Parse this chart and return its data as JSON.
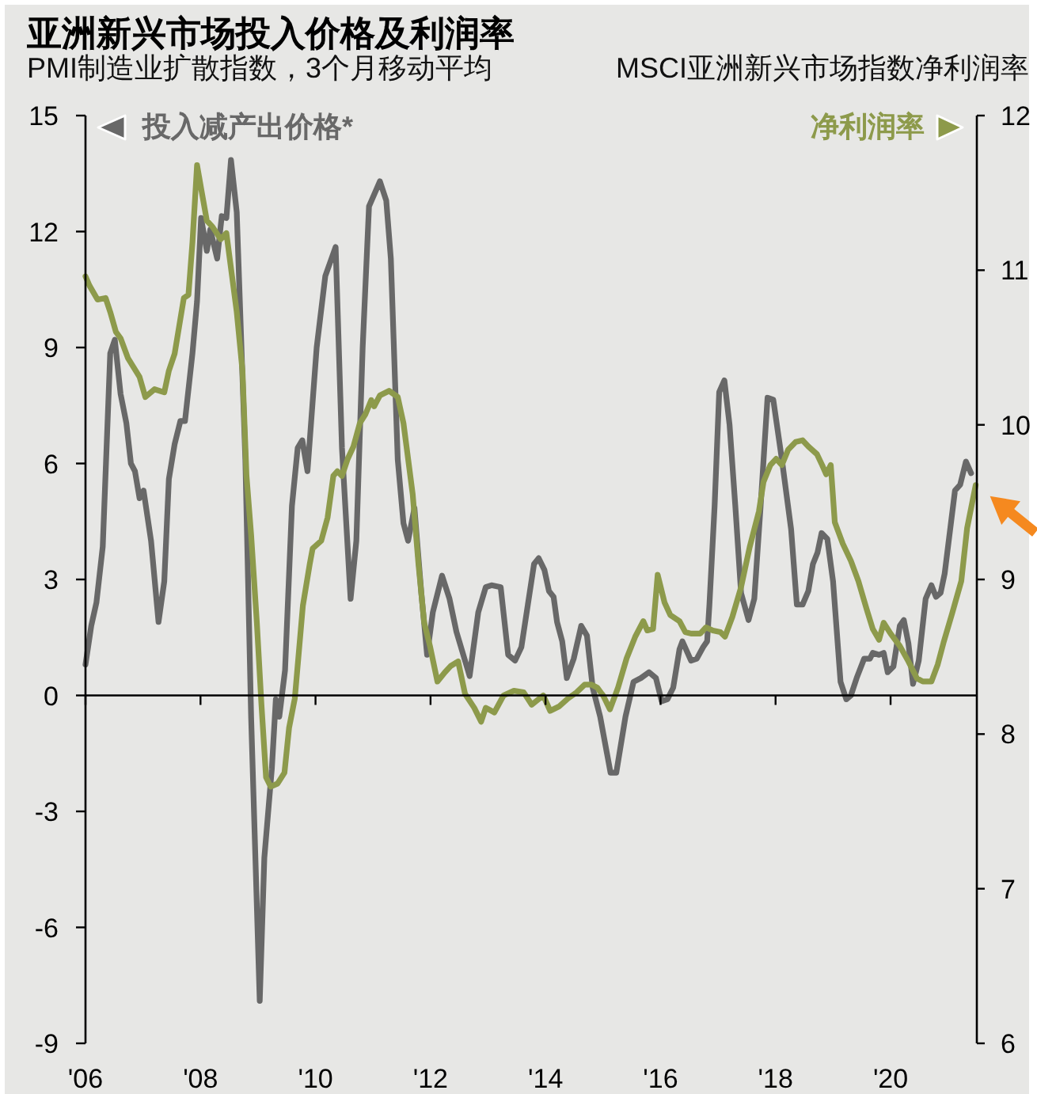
{
  "chart_data": {
    "type": "line",
    "title": "亚洲新兴市场投入价格及利润率",
    "ylabel": "PMI制造业扩散指数，3个月移动平均",
    "y2label": "MSCI亚洲新兴市场指数净利润率",
    "xlim": [
      2006,
      2021.5
    ],
    "xticks": [
      {
        "value": 2006,
        "label": "'06"
      },
      {
        "value": 2008,
        "label": "'08"
      },
      {
        "value": 2010,
        "label": "'10"
      },
      {
        "value": 2012,
        "label": "'12"
      },
      {
        "value": 2014,
        "label": "'14"
      },
      {
        "value": 2016,
        "label": "'16"
      },
      {
        "value": 2018,
        "label": "'18"
      },
      {
        "value": 2020,
        "label": "'20"
      }
    ],
    "ylim": [
      -9,
      15
    ],
    "yticks": [
      -9,
      -6,
      -3,
      0,
      3,
      6,
      9,
      12,
      15
    ],
    "y2lim": [
      6,
      12
    ],
    "y2ticks": [
      6,
      7,
      8,
      9,
      10,
      11,
      12
    ],
    "series": [
      {
        "name": "投入减产出价格*",
        "color": "#686868",
        "axis": "y",
        "x": [
          2006.0,
          2006.1,
          2006.19,
          2006.3,
          2006.43,
          2006.51,
          2006.61,
          2006.71,
          2006.79,
          2006.86,
          2006.94,
          2007.01,
          2007.14,
          2007.27,
          2007.37,
          2007.45,
          2007.55,
          2007.65,
          2007.73,
          2007.86,
          2007.94,
          2008.01,
          2008.11,
          2008.17,
          2008.29,
          2008.37,
          2008.45,
          2008.53,
          2008.63,
          2008.78,
          2008.88,
          2009.03,
          2009.11,
          2009.24,
          2009.31,
          2009.37,
          2009.47,
          2009.59,
          2009.69,
          2009.77,
          2009.86,
          2010.02,
          2010.17,
          2010.35,
          2010.46,
          2010.61,
          2010.71,
          2010.82,
          2010.93,
          2011.12,
          2011.23,
          2011.31,
          2011.43,
          2011.53,
          2011.61,
          2011.72,
          2011.84,
          2011.94,
          2012.04,
          2012.2,
          2012.33,
          2012.45,
          2012.68,
          2012.83,
          2012.96,
          2013.06,
          2013.22,
          2013.35,
          2013.47,
          2013.58,
          2013.8,
          2013.88,
          2013.98,
          2014.06,
          2014.14,
          2014.2,
          2014.29,
          2014.37,
          2014.49,
          2014.62,
          2014.72,
          2014.82,
          2014.95,
          2015.13,
          2015.23,
          2015.39,
          2015.53,
          2015.66,
          2015.8,
          2015.92,
          2016.02,
          2016.12,
          2016.22,
          2016.33,
          2016.38,
          2016.53,
          2016.63,
          2016.74,
          2016.81,
          2016.85,
          2016.94,
          2017.02,
          2017.11,
          2017.2,
          2017.3,
          2017.4,
          2017.53,
          2017.63,
          2017.74,
          2017.86,
          2017.96,
          2018.11,
          2018.27,
          2018.37,
          2018.47,
          2018.57,
          2018.65,
          2018.73,
          2018.8,
          2018.9,
          2019.0,
          2019.13,
          2019.23,
          2019.31,
          2019.41,
          2019.54,
          2019.64,
          2019.69,
          2019.8,
          2019.88,
          2019.95,
          2020.05,
          2020.16,
          2020.23,
          2020.31,
          2020.39,
          2020.49,
          2020.61,
          2020.71,
          2020.79,
          2020.87,
          2020.94,
          2021.12,
          2021.21,
          2021.31,
          2021.4
        ],
        "values": [
          0.8,
          1.8,
          2.4,
          3.85,
          8.85,
          9.2,
          7.8,
          7.05,
          6.0,
          5.8,
          5.1,
          5.3,
          4.0,
          1.9,
          2.95,
          5.6,
          6.5,
          7.1,
          7.1,
          8.85,
          10.2,
          12.35,
          11.5,
          12.05,
          11.3,
          12.4,
          12.35,
          13.85,
          12.5,
          6.1,
          -0.55,
          -7.9,
          -4.2,
          -1.9,
          -0.1,
          -0.55,
          0.65,
          4.9,
          6.4,
          6.6,
          5.8,
          9.0,
          10.85,
          11.6,
          6.4,
          2.5,
          4.0,
          9.0,
          12.65,
          13.3,
          12.8,
          11.3,
          6.1,
          4.45,
          4.0,
          4.85,
          2.65,
          1.05,
          2.15,
          3.1,
          2.5,
          1.65,
          0.5,
          2.15,
          2.8,
          2.85,
          2.8,
          1.05,
          0.9,
          1.25,
          3.4,
          3.55,
          3.25,
          2.7,
          2.55,
          1.9,
          1.4,
          0.45,
          0.95,
          1.8,
          1.55,
          0.2,
          -0.55,
          -2.0,
          -2.0,
          -0.55,
          0.35,
          0.45,
          0.6,
          0.45,
          -0.15,
          -0.1,
          0.2,
          1.2,
          1.4,
          0.9,
          0.95,
          1.25,
          1.4,
          2.35,
          4.9,
          7.85,
          8.15,
          7.0,
          4.9,
          2.65,
          1.95,
          2.5,
          4.9,
          7.7,
          7.65,
          6.1,
          4.3,
          2.35,
          2.35,
          2.7,
          3.4,
          3.7,
          4.2,
          4.05,
          2.95,
          0.35,
          -0.1,
          0.0,
          0.45,
          0.95,
          0.95,
          1.1,
          1.05,
          1.1,
          0.6,
          0.75,
          1.8,
          1.95,
          1.35,
          0.3,
          0.9,
          2.5,
          2.85,
          2.55,
          2.65,
          3.15,
          5.3,
          5.45,
          6.05,
          5.75
        ]
      },
      {
        "name": "净利润率",
        "color": "#8d9a4b",
        "axis": "y2",
        "x": [
          2006.0,
          2006.07,
          2006.21,
          2006.35,
          2006.43,
          2006.53,
          2006.61,
          2006.74,
          2006.84,
          2006.94,
          2007.04,
          2007.2,
          2007.37,
          2007.45,
          2007.55,
          2007.71,
          2007.79,
          2007.86,
          2007.94,
          2008.01,
          2008.11,
          2008.21,
          2008.35,
          2008.45,
          2008.63,
          2008.73,
          2008.8,
          2008.88,
          2008.98,
          2009.06,
          2009.14,
          2009.22,
          2009.34,
          2009.46,
          2009.54,
          2009.64,
          2009.78,
          2009.9,
          2009.95,
          2010.1,
          2010.21,
          2010.31,
          2010.38,
          2010.46,
          2010.56,
          2010.66,
          2010.77,
          2010.87,
          2010.97,
          2011.02,
          2011.12,
          2011.28,
          2011.43,
          2011.53,
          2011.69,
          2011.79,
          2011.89,
          2011.99,
          2012.12,
          2012.25,
          2012.35,
          2012.48,
          2012.6,
          2012.76,
          2012.88,
          2012.96,
          2013.11,
          2013.27,
          2013.45,
          2013.62,
          2013.76,
          2013.96,
          2014.08,
          2014.24,
          2014.39,
          2014.54,
          2014.68,
          2014.8,
          2014.9,
          2015.0,
          2015.12,
          2015.26,
          2015.41,
          2015.56,
          2015.7,
          2015.77,
          2015.87,
          2015.95,
          2016.07,
          2016.17,
          2016.33,
          2016.43,
          2016.53,
          2016.69,
          2016.79,
          2016.91,
          2017.04,
          2017.12,
          2017.25,
          2017.4,
          2017.55,
          2017.71,
          2017.79,
          2017.91,
          2018.01,
          2018.11,
          2018.22,
          2018.35,
          2018.47,
          2018.57,
          2018.72,
          2018.81,
          2018.88,
          2018.96,
          2019.03,
          2019.17,
          2019.31,
          2019.44,
          2019.59,
          2019.69,
          2019.8,
          2019.88,
          2020.0,
          2020.16,
          2020.31,
          2020.46,
          2020.56,
          2020.71,
          2020.82,
          2020.92,
          2021.07,
          2021.23,
          2021.33,
          2021.48
        ],
        "values": [
          10.96,
          10.9,
          10.81,
          10.82,
          10.73,
          10.6,
          10.56,
          10.43,
          10.37,
          10.31,
          10.18,
          10.23,
          10.21,
          10.35,
          10.46,
          10.82,
          10.84,
          11.18,
          11.68,
          11.53,
          11.32,
          11.28,
          11.2,
          11.24,
          10.73,
          10.35,
          9.67,
          9.29,
          8.72,
          8.19,
          7.72,
          7.66,
          7.68,
          7.75,
          8.04,
          8.23,
          8.83,
          9.1,
          9.2,
          9.25,
          9.4,
          9.67,
          9.7,
          9.67,
          9.78,
          9.86,
          10.01,
          10.07,
          10.16,
          10.12,
          10.19,
          10.22,
          10.18,
          10.01,
          9.55,
          9.1,
          8.72,
          8.57,
          8.34,
          8.4,
          8.44,
          8.47,
          8.26,
          8.17,
          8.08,
          8.17,
          8.14,
          8.25,
          8.28,
          8.27,
          8.19,
          8.25,
          8.15,
          8.18,
          8.23,
          8.27,
          8.32,
          8.32,
          8.3,
          8.25,
          8.16,
          8.3,
          8.49,
          8.63,
          8.73,
          8.67,
          8.68,
          9.03,
          8.85,
          8.77,
          8.73,
          8.66,
          8.65,
          8.65,
          8.69,
          8.67,
          8.66,
          8.63,
          8.76,
          8.95,
          9.21,
          9.44,
          9.63,
          9.74,
          9.78,
          9.74,
          9.84,
          9.89,
          9.9,
          9.86,
          9.81,
          9.74,
          9.68,
          9.74,
          9.37,
          9.23,
          9.12,
          8.99,
          8.8,
          8.68,
          8.61,
          8.72,
          8.65,
          8.57,
          8.47,
          8.36,
          8.34,
          8.34,
          8.45,
          8.59,
          8.78,
          8.99,
          9.33,
          9.61
        ]
      }
    ]
  }
}
